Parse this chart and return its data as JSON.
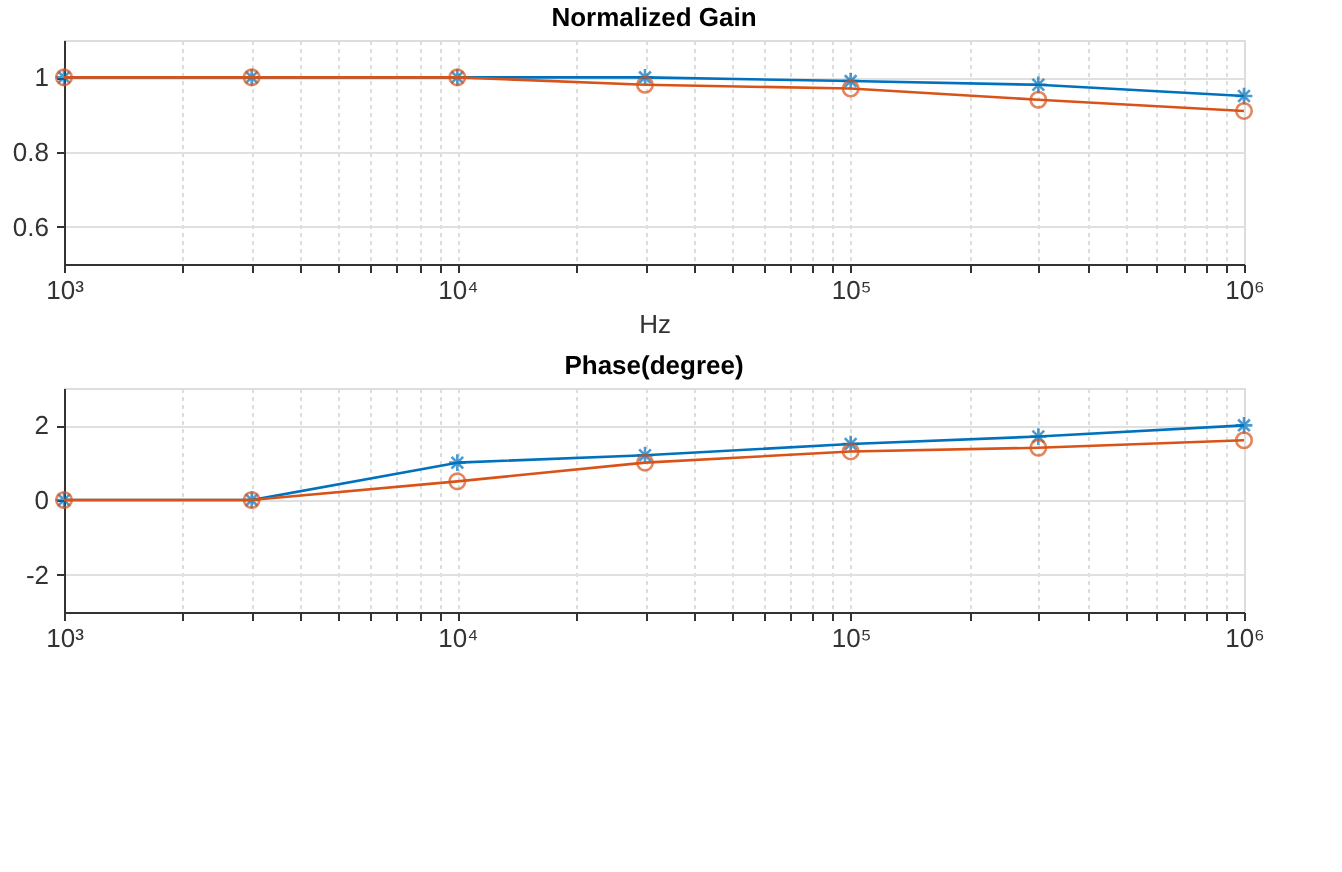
{
  "chart_data": [
    {
      "type": "line",
      "title": "Normalized Gain",
      "xlabel": "Hz",
      "x": [
        1000,
        3000,
        10000,
        30000,
        100000,
        300000,
        1000000
      ],
      "series": [
        {
          "color": "#0072bd",
          "marker": "cross",
          "values": [
            1,
            1,
            1,
            1.0,
            0.99,
            0.98,
            0.95
          ]
        },
        {
          "color": "#d95319",
          "marker": "circle",
          "values": [
            1,
            1,
            1,
            0.98,
            0.97,
            0.94,
            0.91
          ]
        }
      ],
      "log": "x",
      "xlim": [
        1000,
        1000000
      ],
      "xticks": [
        {
          "value": 1000,
          "label": "10³"
        },
        {
          "value": 2000,
          "label": null
        },
        {
          "value": 3000,
          "label": null
        },
        {
          "value": 4000,
          "label": null
        },
        {
          "value": 5000,
          "label": null
        },
        {
          "value": 6000,
          "label": null
        },
        {
          "value": 7000,
          "label": null
        },
        {
          "value": 8000,
          "label": null
        },
        {
          "value": 9000,
          "label": null
        },
        {
          "value": 10000,
          "label": "10⁴"
        },
        {
          "value": 20000,
          "label": null
        },
        {
          "value": 30000,
          "label": null
        },
        {
          "value": 40000,
          "label": null
        },
        {
          "value": 50000,
          "label": null
        },
        {
          "value": 60000,
          "label": null
        },
        {
          "value": 70000,
          "label": null
        },
        {
          "value": 80000,
          "label": null
        },
        {
          "value": 90000,
          "label": null
        },
        {
          "value": 100000,
          "label": "10⁵"
        },
        {
          "value": 200000,
          "label": null
        },
        {
          "value": 300000,
          "label": null
        },
        {
          "value": 400000,
          "label": null
        },
        {
          "value": 500000,
          "label": null
        },
        {
          "value": 600000,
          "label": null
        },
        {
          "value": 700000,
          "label": null
        },
        {
          "value": 800000,
          "label": null
        },
        {
          "value": 900000,
          "label": null
        },
        {
          "value": 1000000,
          "label": "10⁶"
        }
      ],
      "ylim": [
        0.5,
        1.1
      ],
      "yticks": [
        0.6,
        0.8,
        {
          "value": 1,
          "label": "1"
        }
      ],
      "grid": true
    },
    {
      "type": "line",
      "title": "Phase(degree)",
      "x": [
        1000,
        3000,
        10000,
        30000,
        100000,
        300000,
        1000000
      ],
      "series": [
        {
          "color": "#0072bd",
          "marker": "cross",
          "values": [
            0,
            0,
            1,
            1.2,
            1.5,
            1.7,
            2
          ]
        },
        {
          "color": "#d95319",
          "marker": "circle",
          "values": [
            0,
            0,
            0.5,
            1,
            1.3,
            1.4,
            1.6
          ]
        }
      ],
      "log": "x",
      "xlim": [
        1000,
        1000000
      ],
      "xticks": [
        {
          "value": 1000,
          "label": "10³"
        },
        {
          "value": 2000,
          "label": null
        },
        {
          "value": 3000,
          "label": null
        },
        {
          "value": 4000,
          "label": null
        },
        {
          "value": 5000,
          "label": null
        },
        {
          "value": 6000,
          "label": null
        },
        {
          "value": 7000,
          "label": null
        },
        {
          "value": 8000,
          "label": null
        },
        {
          "value": 9000,
          "label": null
        },
        {
          "value": 10000,
          "label": "10⁴"
        },
        {
          "value": 20000,
          "label": null
        },
        {
          "value": 30000,
          "label": null
        },
        {
          "value": 40000,
          "label": null
        },
        {
          "value": 50000,
          "label": null
        },
        {
          "value": 60000,
          "label": null
        },
        {
          "value": 70000,
          "label": null
        },
        {
          "value": 80000,
          "label": null
        },
        {
          "value": 90000,
          "label": null
        },
        {
          "value": 100000,
          "label": "10⁵"
        },
        {
          "value": 200000,
          "label": null
        },
        {
          "value": 300000,
          "label": null
        },
        {
          "value": 400000,
          "label": null
        },
        {
          "value": 500000,
          "label": null
        },
        {
          "value": 600000,
          "label": null
        },
        {
          "value": 700000,
          "label": null
        },
        {
          "value": 800000,
          "label": null
        },
        {
          "value": 900000,
          "label": null
        },
        {
          "value": 1000000,
          "label": "10⁶"
        }
      ],
      "ylim": [
        -3,
        3
      ],
      "yticks": [
        -2,
        0,
        2
      ],
      "grid": true
    }
  ]
}
